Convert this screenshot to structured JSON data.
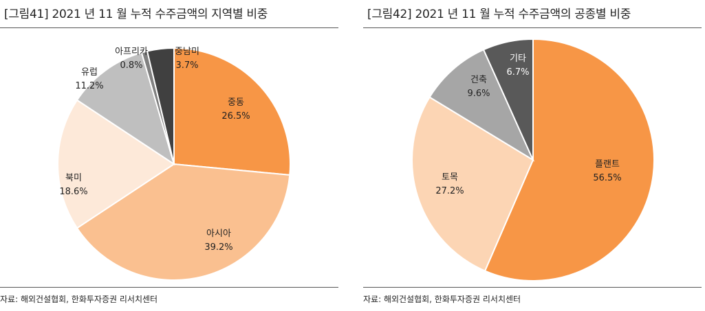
{
  "chart_data": [
    {
      "type": "pie",
      "title": "[그림41]  2021 년 11 월 누적 수주금액의 지역별 비중",
      "source": "자료: 해외건설협회, 한화투자증권 리서치센터",
      "slices": [
        {
          "label": "중동",
          "value": 26.5,
          "value_label": "26.5%",
          "color": "#F79646"
        },
        {
          "label": "아시아",
          "value": 39.2,
          "value_label": "39.2%",
          "color": "#FAC090"
        },
        {
          "label": "북미",
          "value": 18.6,
          "value_label": "18.6%",
          "color": "#FDE9D9"
        },
        {
          "label": "유럽",
          "value": 11.2,
          "value_label": "11.2%",
          "color": "#BFBFBF"
        },
        {
          "label": "아프리카",
          "value": 0.8,
          "value_label": "0.8%",
          "color": "#808080"
        },
        {
          "label": "중남미",
          "value": 3.7,
          "value_label": "3.7%",
          "color": "#404040"
        }
      ],
      "start_angle_deg": 0,
      "direction": "clockwise"
    },
    {
      "type": "pie",
      "title": "[그림42]  2021 년 11 월 누적 수주금액의 공종별 비중",
      "source": "자료: 해외건설협회, 한화투자증권 리서치센터",
      "slices": [
        {
          "label": "플랜트",
          "value": 56.5,
          "value_label": "56.5%",
          "color": "#F79646"
        },
        {
          "label": "토목",
          "value": 27.2,
          "value_label": "27.2%",
          "color": "#FCD5B4"
        },
        {
          "label": "건축",
          "value": 9.6,
          "value_label": "9.6%",
          "color": "#A6A6A6"
        },
        {
          "label": "기타",
          "value": 6.7,
          "value_label": "6.7%",
          "color": "#595959"
        }
      ],
      "start_angle_deg": 0,
      "direction": "clockwise"
    }
  ]
}
